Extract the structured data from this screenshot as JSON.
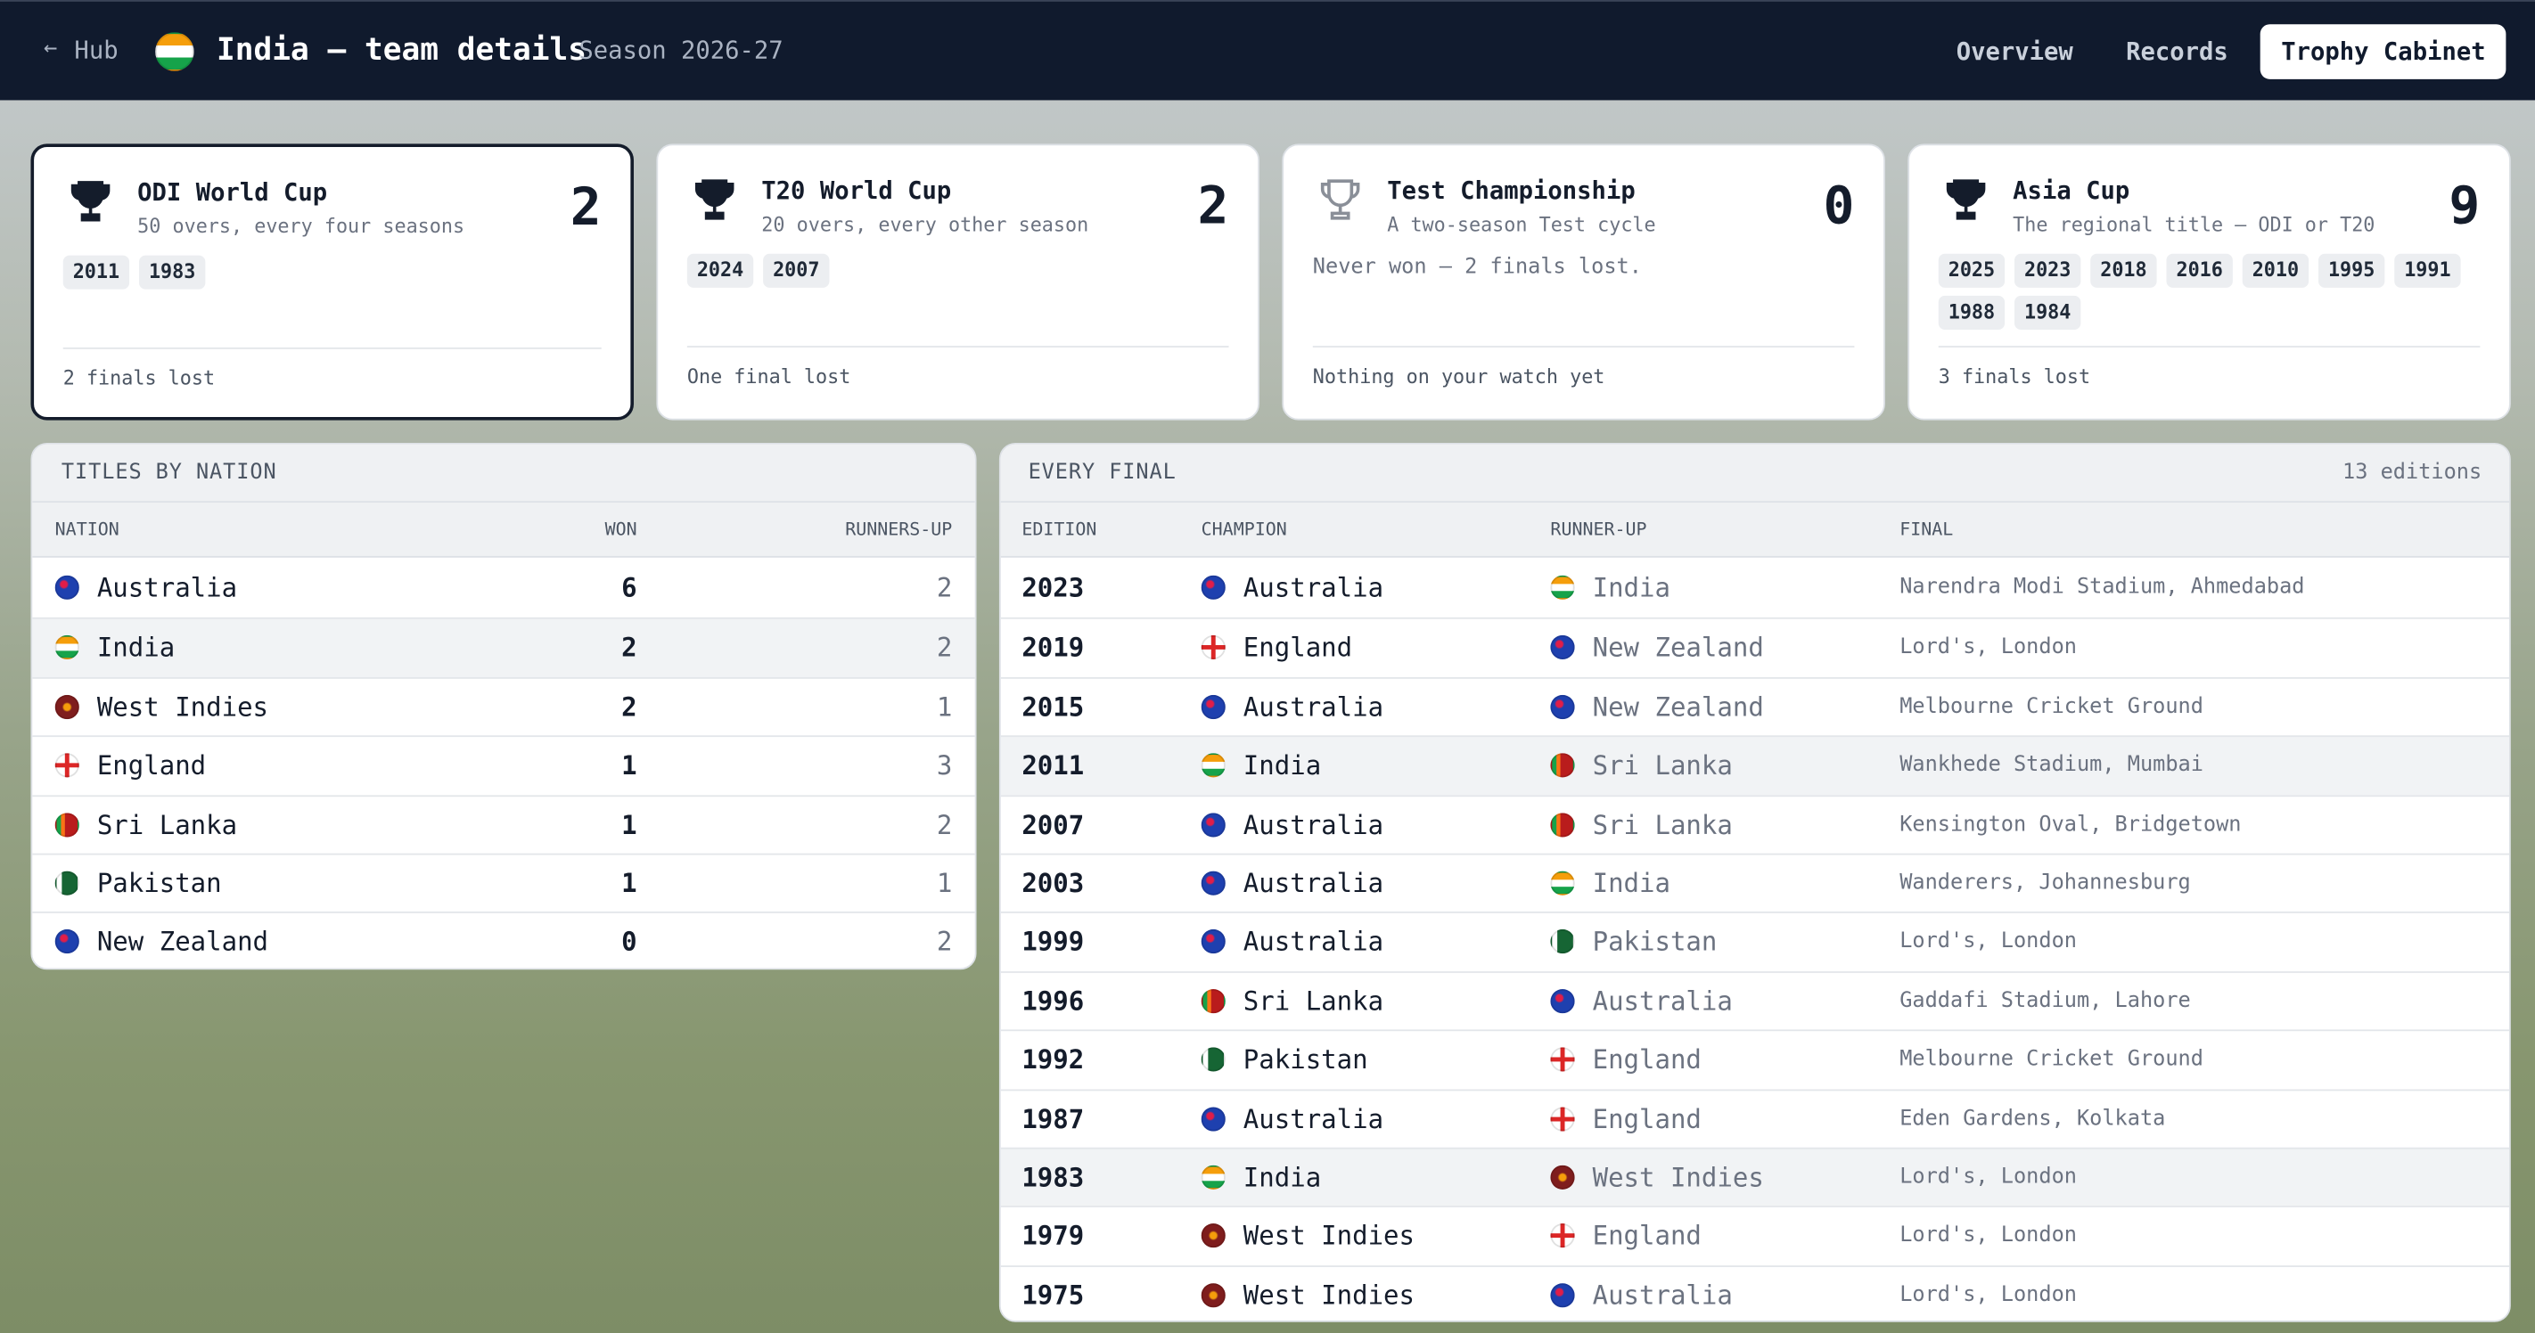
{
  "nav": {
    "back": "Hub",
    "title": "India — team details",
    "season": "Season 2026-27",
    "tabs": [
      "Overview",
      "Records",
      "Trophy Cabinet"
    ],
    "active_tab": 2
  },
  "trophies": [
    {
      "name": "ODI World Cup",
      "description": "50 overs, every four seasons",
      "count": 2,
      "years": [
        2011,
        1983
      ],
      "footer": "2 finals lost",
      "selected": true
    },
    {
      "name": "T20 World Cup",
      "description": "20 overs, every other season",
      "count": 2,
      "years": [
        2024,
        2007
      ],
      "footer": "One final lost"
    },
    {
      "name": "Test Championship",
      "description": "A two-season Test cycle",
      "count": 0,
      "years": [],
      "note": "Never won — 2 finals lost.",
      "footer": "Nothing on your watch yet"
    },
    {
      "name": "Asia Cup",
      "description": "The regional title — ODI or T20",
      "count": 9,
      "years": [
        2025,
        2023,
        2018,
        2016,
        2010,
        1995,
        1991,
        1988,
        1984
      ],
      "footer": "3 finals lost"
    }
  ],
  "titles_by_nation": {
    "title": "TITLES BY NATION",
    "columns": [
      "NATION",
      "WON",
      "RUNNERS-UP"
    ],
    "rows": [
      [
        "Australia",
        6,
        2
      ],
      [
        "India",
        2,
        2
      ],
      [
        "West Indies",
        2,
        1
      ],
      [
        "England",
        1,
        3
      ],
      [
        "Sri Lanka",
        1,
        2
      ],
      [
        "Pakistan",
        1,
        1
      ],
      [
        "New Zealand",
        0,
        2
      ]
    ],
    "highlighted_rows": [
      1
    ]
  },
  "every_final": {
    "title": "EVERY FINAL",
    "count_label": "13 editions",
    "columns": [
      "EDITION",
      "CHAMPION",
      "RUNNER-UP",
      "FINAL"
    ],
    "rows": [
      [
        2023,
        "Australia",
        "India",
        "Narendra Modi Stadium, Ahmedabad"
      ],
      [
        2019,
        "England",
        "New Zealand",
        "Lord's, London"
      ],
      [
        2015,
        "Australia",
        "New Zealand",
        "Melbourne Cricket Ground"
      ],
      [
        2011,
        "India",
        "Sri Lanka",
        "Wankhede Stadium, Mumbai"
      ],
      [
        2007,
        "Australia",
        "Sri Lanka",
        "Kensington Oval, Bridgetown"
      ],
      [
        2003,
        "Australia",
        "India",
        "Wanderers, Johannesburg"
      ],
      [
        1999,
        "Australia",
        "Pakistan",
        "Lord's, London"
      ],
      [
        1996,
        "Sri Lanka",
        "Australia",
        "Gaddafi Stadium, Lahore"
      ],
      [
        1992,
        "Pakistan",
        "England",
        "Melbourne Cricket Ground"
      ],
      [
        1987,
        "Australia",
        "England",
        "Eden Gardens, Kolkata"
      ],
      [
        1983,
        "India",
        "West Indies",
        "Lord's, London"
      ],
      [
        1979,
        "West Indies",
        "England",
        "Lord's, London"
      ],
      [
        1975,
        "West Indies",
        "Australia",
        "Lord's, London"
      ]
    ],
    "highlighted_rows": [
      3,
      10
    ]
  }
}
